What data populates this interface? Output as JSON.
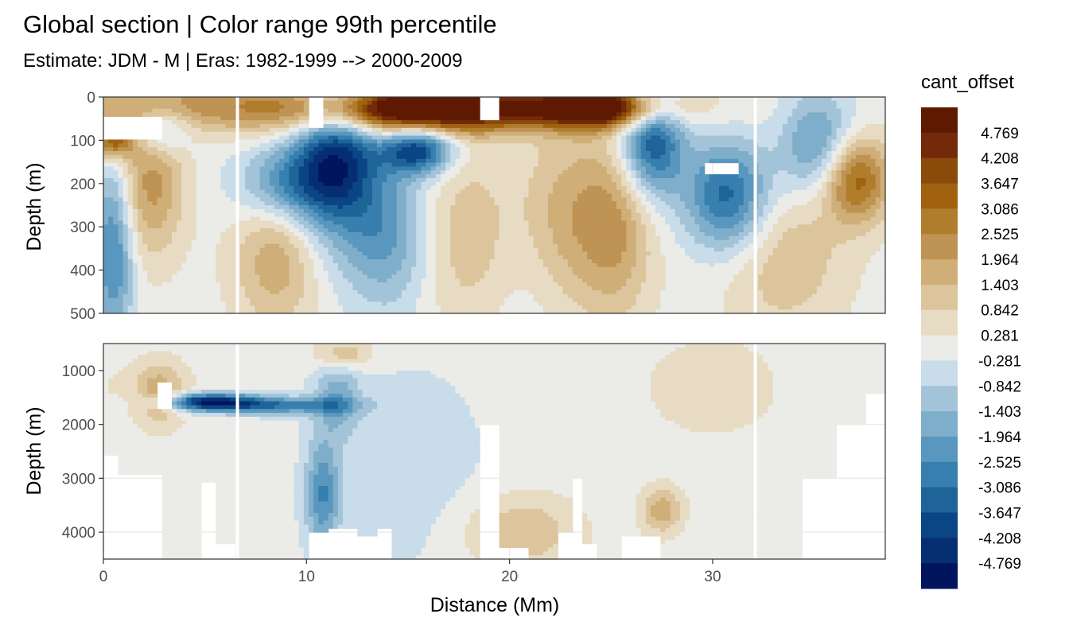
{
  "colors": {
    "background": "#ffffff",
    "panel_border": "#333333",
    "gridline": "#ebebeb",
    "tick_text": "#4d4d4d",
    "nan_fill": "#ffffff",
    "palette_low": "#00155e",
    "palette_mid": "#ebebe8",
    "palette_high": "#5e1a00"
  },
  "chart_data": {
    "type": "heatmap",
    "title": "Global section | Color range 99th percentile",
    "subtitle": "Estimate: JDM - M | Eras: 1982-1999 --> 2000-2009",
    "xlabel": "Distance (Mm)",
    "xlim": [
      0,
      38.5
    ],
    "x_ticks": [
      0,
      10,
      20,
      30
    ],
    "x_tick_labels": [
      "0",
      "10",
      "20",
      "30"
    ],
    "panels": [
      {
        "name": "upper",
        "ylabel": "Depth (m)",
        "ylim": [
          0,
          500
        ],
        "y_reversed": true,
        "y_ticks": [
          0,
          100,
          200,
          300,
          400,
          500
        ],
        "y_tick_labels": [
          "0",
          "100",
          "200",
          "300",
          "400",
          "500"
        ]
      },
      {
        "name": "lower",
        "ylabel": "Depth (m)",
        "ylim": [
          500,
          4500
        ],
        "y_reversed": true,
        "y_ticks": [
          1000,
          2000,
          3000,
          4000
        ],
        "y_tick_labels": [
          "1000",
          "2000",
          "3000",
          "4000"
        ]
      }
    ],
    "legend": {
      "title": "cant_offset",
      "position": "right",
      "labels": [
        "4.769",
        "4.208",
        "3.647",
        "3.086",
        "2.525",
        "1.964",
        "1.403",
        "0.842",
        "0.281",
        "-0.281",
        "-0.842",
        "-1.403",
        "-1.964",
        "-2.525",
        "-3.086",
        "-3.647",
        "-4.208",
        "-4.769"
      ],
      "colors": [
        "#5e1a00",
        "#73290a",
        "#8a4a0a",
        "#a0620f",
        "#b07d2c",
        "#bf9353",
        "#cfae78",
        "#dcc59c",
        "#e7dcc3",
        "#ebebe8",
        "#c8dce9",
        "#a3c4d8",
        "#7faecb",
        "#5a97be",
        "#367fae",
        "#1e6499",
        "#0a4585",
        "#062f73",
        "#00155e"
      ]
    },
    "gap_columns_x": [
      6.6,
      32.1
    ],
    "features": [
      {
        "panel": "upper",
        "x": 5,
        "y": 20,
        "sx": 6,
        "sy": 45,
        "v": 2.2
      },
      {
        "panel": "upper",
        "x": 14.5,
        "y": 30,
        "sx": 3.5,
        "sy": 40,
        "v": 4.4
      },
      {
        "panel": "upper",
        "x": 20,
        "y": 25,
        "sx": 5,
        "sy": 35,
        "v": 3.6
      },
      {
        "panel": "upper",
        "x": 24.5,
        "y": 25,
        "sx": 2,
        "sy": 30,
        "v": 4.2
      },
      {
        "panel": "upper",
        "x": 37,
        "y": 190,
        "sx": 1.2,
        "sy": 70,
        "v": 3.6
      },
      {
        "panel": "upper",
        "x": 0.5,
        "y": 100,
        "sx": 0.7,
        "sy": 30,
        "v": 3.5
      },
      {
        "panel": "upper",
        "x": 2.3,
        "y": 200,
        "sx": 1.2,
        "sy": 120,
        "v": 2.2
      },
      {
        "panel": "upper",
        "x": 11.5,
        "y": 120,
        "sx": 1.5,
        "sy": 140,
        "v": -4.2
      },
      {
        "panel": "upper",
        "x": 15.5,
        "y": 120,
        "sx": 1.2,
        "sy": 40,
        "v": -4.2
      },
      {
        "panel": "upper",
        "x": 14,
        "y": 320,
        "sx": 1.5,
        "sy": 120,
        "v": -2.0
      },
      {
        "panel": "upper",
        "x": 27,
        "y": 100,
        "sx": 1.1,
        "sy": 90,
        "v": -3.8
      },
      {
        "panel": "upper",
        "x": 30.8,
        "y": 230,
        "sx": 1.5,
        "sy": 90,
        "v": -3.6
      },
      {
        "panel": "upper",
        "x": 35.2,
        "y": 120,
        "sx": 1.3,
        "sy": 90,
        "v": -2.6
      },
      {
        "panel": "upper",
        "x": 0.5,
        "y": 350,
        "sx": 0.7,
        "sy": 150,
        "v": -2.8
      },
      {
        "panel": "upper",
        "x": 2.8,
        "y": 70,
        "sx": 1.0,
        "sy": 40,
        "v": -2.4
      },
      {
        "panel": "upper",
        "x": 9.2,
        "y": 200,
        "sx": 1.8,
        "sy": 60,
        "v": -2.4
      },
      {
        "panel": "upper",
        "x": 18.3,
        "y": 320,
        "sx": 1.8,
        "sy": 150,
        "v": 1.6
      },
      {
        "panel": "upper",
        "x": 22.5,
        "y": 280,
        "sx": 1.8,
        "sy": 150,
        "v": 2.0
      },
      {
        "panel": "upper",
        "x": 25.3,
        "y": 300,
        "sx": 1.3,
        "sy": 150,
        "v": 1.8
      },
      {
        "panel": "upper",
        "x": 33.5,
        "y": 350,
        "sx": 2.2,
        "sy": 140,
        "v": 1.4
      },
      {
        "panel": "upper",
        "x": 8.5,
        "y": 380,
        "sx": 1.5,
        "sy": 110,
        "v": 1.8
      },
      {
        "panel": "upper",
        "x": 20.5,
        "y": 330,
        "sx": 1.8,
        "sy": 160,
        "v": -1.1
      },
      {
        "panel": "lower",
        "x": 5.2,
        "y": 1580,
        "sx": 1.6,
        "sy": 110,
        "v": -4.3
      },
      {
        "panel": "lower",
        "x": 8.5,
        "y": 1650,
        "sx": 2.5,
        "sy": 110,
        "v": -2.8
      },
      {
        "panel": "lower",
        "x": 2.8,
        "y": 1450,
        "sx": 0.8,
        "sy": 400,
        "v": 1.6
      },
      {
        "panel": "lower",
        "x": 10.8,
        "y": 3300,
        "sx": 0.6,
        "sy": 700,
        "v": -2.4
      },
      {
        "panel": "lower",
        "x": 11.5,
        "y": 1500,
        "sx": 0.8,
        "sy": 500,
        "v": -1.6
      },
      {
        "panel": "lower",
        "x": 11.8,
        "y": 700,
        "sx": 1.0,
        "sy": 200,
        "v": 1.6
      },
      {
        "panel": "lower",
        "x": 20.5,
        "y": 4000,
        "sx": 2.0,
        "sy": 500,
        "v": 1.4
      },
      {
        "panel": "lower",
        "x": 27.5,
        "y": 3600,
        "sx": 0.7,
        "sy": 300,
        "v": 1.8
      },
      {
        "panel": "lower",
        "x": 30,
        "y": 1300,
        "sx": 2.5,
        "sy": 700,
        "v": 0.6
      },
      {
        "panel": "lower",
        "x": 15,
        "y": 2800,
        "sx": 3.0,
        "sy": 1500,
        "v": -0.6
      },
      {
        "panel": "lower",
        "x": 2,
        "y": 1300,
        "sx": 2.0,
        "sy": 400,
        "v": 0.4
      }
    ],
    "white_regions": [
      {
        "panel": "upper",
        "x0": 0.1,
        "x1": 2.8,
        "y0": 45,
        "y1": 100
      },
      {
        "panel": "upper",
        "x0": 18.6,
        "x1": 19.4,
        "y0": 0,
        "y1": 55
      },
      {
        "panel": "upper",
        "x0": 10.2,
        "x1": 10.9,
        "y0": 0,
        "y1": 70
      },
      {
        "panel": "upper",
        "x0": 29.5,
        "x1": 31.2,
        "y0": 150,
        "y1": 175
      },
      {
        "panel": "lower",
        "x0": 2.7,
        "x1": 3.3,
        "y0": 1200,
        "y1": 1700
      }
    ],
    "bottom_mask": [
      {
        "x0": 0,
        "x1": 0.8,
        "depth": 2600
      },
      {
        "x0": 0.8,
        "x1": 2.8,
        "depth": 2900
      },
      {
        "x0": 2.8,
        "x1": 4.8,
        "depth": 4500
      },
      {
        "x0": 4.8,
        "x1": 5.5,
        "depth": 3100
      },
      {
        "x0": 5.5,
        "x1": 6.6,
        "depth": 4200
      },
      {
        "x0": 6.8,
        "x1": 10.2,
        "depth": 4500
      },
      {
        "x0": 10.2,
        "x1": 11.0,
        "depth": 4000
      },
      {
        "x0": 11.0,
        "x1": 12.5,
        "depth": 3900
      },
      {
        "x0": 12.5,
        "x1": 13.5,
        "depth": 4100
      },
      {
        "x0": 13.5,
        "x1": 14.2,
        "depth": 3900
      },
      {
        "x0": 14.2,
        "x1": 18.5,
        "depth": 4500
      },
      {
        "x0": 18.5,
        "x1": 19.4,
        "depth": 2000
      },
      {
        "x0": 19.4,
        "x1": 21.0,
        "depth": 4300
      },
      {
        "x0": 21.0,
        "x1": 22.3,
        "depth": 4500
      },
      {
        "x0": 22.3,
        "x1": 23.2,
        "depth": 4000
      },
      {
        "x0": 23.2,
        "x1": 23.6,
        "depth": 3000
      },
      {
        "x0": 23.6,
        "x1": 24.3,
        "depth": 4200
      },
      {
        "x0": 24.3,
        "x1": 25.5,
        "depth": 4500
      },
      {
        "x0": 25.5,
        "x1": 27.5,
        "depth": 4100
      },
      {
        "x0": 27.5,
        "x1": 31.5,
        "depth": 4500
      },
      {
        "x0": 32.2,
        "x1": 34.5,
        "depth": 4500
      },
      {
        "x0": 34.5,
        "x1": 36.2,
        "depth": 3000
      },
      {
        "x0": 36.2,
        "x1": 37.5,
        "depth": 2000
      },
      {
        "x0": 37.5,
        "x1": 38.5,
        "depth": 1400
      }
    ]
  }
}
